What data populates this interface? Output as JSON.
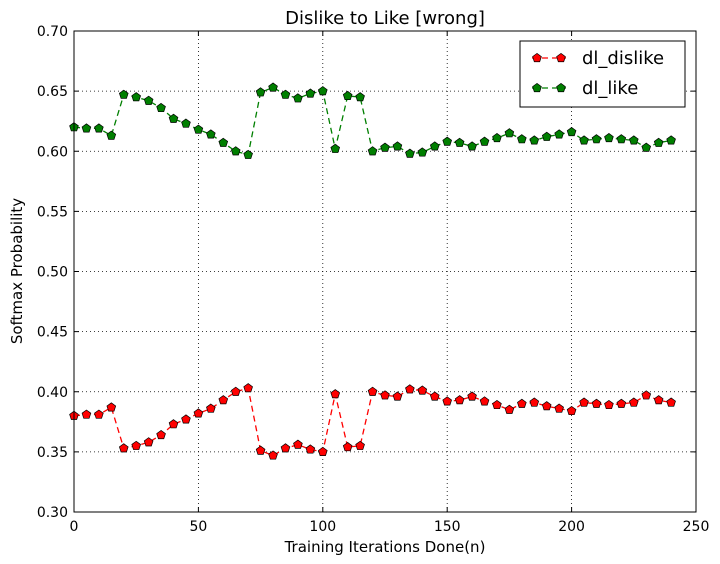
{
  "chart_data": {
    "type": "line",
    "title": "Dislike to Like [wrong]",
    "xlabel": "Training Iterations Done(n)",
    "ylabel": "Softmax Probability",
    "xlim": [
      0,
      250
    ],
    "ylim": [
      0.3,
      0.7
    ],
    "xticks": [
      0,
      50,
      100,
      150,
      200,
      250
    ],
    "yticks": [
      0.3,
      0.35,
      0.4,
      0.45,
      0.5,
      0.55,
      0.6,
      0.65,
      0.7
    ],
    "xtick_labels": [
      "0",
      "50",
      "100",
      "150",
      "200",
      "250"
    ],
    "ytick_labels": [
      "0.30",
      "0.35",
      "0.40",
      "0.45",
      "0.50",
      "0.55",
      "0.60",
      "0.65",
      "0.70"
    ],
    "grid": true,
    "legend_position": "top-right",
    "x": [
      0,
      5,
      10,
      15,
      20,
      25,
      30,
      35,
      40,
      45,
      50,
      55,
      60,
      65,
      70,
      75,
      80,
      85,
      90,
      95,
      100,
      105,
      110,
      115,
      120,
      125,
      130,
      135,
      140,
      145,
      150,
      155,
      160,
      165,
      170,
      175,
      180,
      185,
      190,
      195,
      200,
      205,
      210,
      215,
      220,
      225,
      230,
      235,
      240
    ],
    "series": [
      {
        "name": "dl_dislike",
        "color": "#ff0000",
        "values": [
          0.38,
          0.381,
          0.381,
          0.387,
          0.353,
          0.355,
          0.358,
          0.364,
          0.373,
          0.377,
          0.382,
          0.386,
          0.393,
          0.4,
          0.403,
          0.351,
          0.347,
          0.353,
          0.356,
          0.352,
          0.35,
          0.398,
          0.354,
          0.355,
          0.4,
          0.397,
          0.396,
          0.402,
          0.401,
          0.396,
          0.392,
          0.393,
          0.396,
          0.392,
          0.389,
          0.385,
          0.39,
          0.391,
          0.388,
          0.386,
          0.384,
          0.391,
          0.39,
          0.389,
          0.39,
          0.391,
          0.397,
          0.393,
          0.391
        ]
      },
      {
        "name": "dl_like",
        "color": "#007f00",
        "values": [
          0.62,
          0.619,
          0.619,
          0.613,
          0.647,
          0.645,
          0.642,
          0.636,
          0.627,
          0.623,
          0.618,
          0.614,
          0.607,
          0.6,
          0.597,
          0.649,
          0.653,
          0.647,
          0.644,
          0.648,
          0.65,
          0.602,
          0.646,
          0.645,
          0.6,
          0.603,
          0.604,
          0.598,
          0.599,
          0.604,
          0.608,
          0.607,
          0.604,
          0.608,
          0.611,
          0.615,
          0.61,
          0.609,
          0.612,
          0.614,
          0.616,
          0.609,
          0.61,
          0.611,
          0.61,
          0.609,
          0.603,
          0.607,
          0.609
        ]
      }
    ]
  }
}
